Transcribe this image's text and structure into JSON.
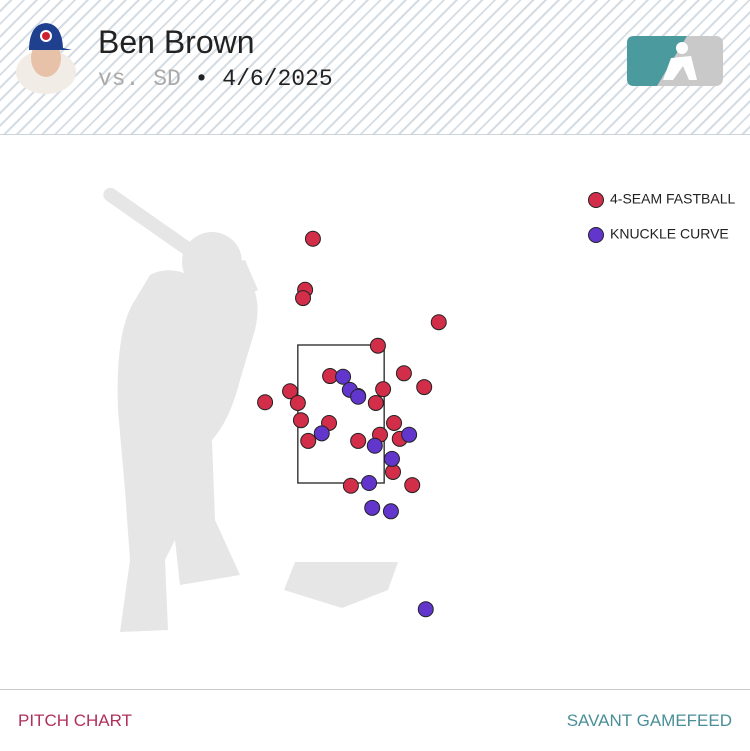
{
  "header": {
    "name": "Ben Brown",
    "opponent": "vs. SD",
    "separator": "•",
    "date": "4/6/2025"
  },
  "chart_data": {
    "type": "scatter",
    "xlim": [
      -3,
      3
    ],
    "ylim": [
      -0.5,
      5.5
    ],
    "strike_zone": {
      "x": [
        -0.83,
        0.83
      ],
      "z": [
        1.5,
        3.5
      ]
    },
    "series": [
      {
        "name": "4-SEAM FASTBALL",
        "color": "#d22d49",
        "x": [
          -0.54,
          -0.69,
          -0.73,
          1.88,
          0.71,
          -0.21,
          1.21,
          1.6,
          0.81,
          -0.98,
          -1.46,
          -0.83,
          0.33,
          0.67,
          -0.77,
          -0.23,
          1.02,
          -0.63,
          0.33,
          0.75,
          1.13,
          1.0,
          0.19,
          1.37
        ],
        "values": [
          5.04,
          4.3,
          4.18,
          3.83,
          3.49,
          3.05,
          3.09,
          2.89,
          2.86,
          2.83,
          2.67,
          2.66,
          2.76,
          2.66,
          2.41,
          2.37,
          2.37,
          2.11,
          2.11,
          2.2,
          2.14,
          1.66,
          1.46,
          1.47
        ]
      },
      {
        "name": "KNUCKLE CURVE",
        "color": "#6236cd",
        "x": [
          0.04,
          0.17,
          0.33,
          -0.37,
          1.31,
          0.65,
          0.98,
          0.54,
          0.6,
          0.96,
          1.63
        ],
        "values": [
          3.04,
          2.85,
          2.75,
          2.22,
          2.2,
          2.04,
          1.85,
          1.5,
          1.14,
          1.09,
          -0.33
        ]
      }
    ]
  },
  "footer": {
    "left": "PITCH CHART",
    "right": "SAVANT GAMEFEED"
  }
}
